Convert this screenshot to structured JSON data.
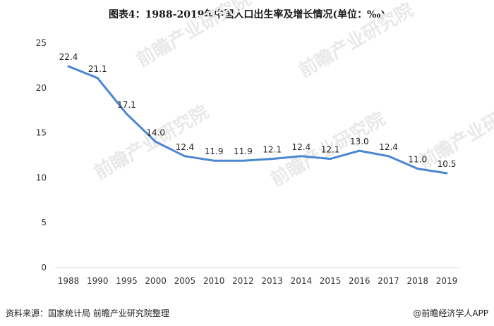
{
  "chart_data": {
    "type": "line",
    "title": "图表4：1988-2019年中国人口出生率及增长情况(单位：‰)",
    "categories": [
      "1988",
      "1990",
      "1995",
      "2000",
      "2005",
      "2010",
      "2012",
      "2013",
      "2014",
      "2015",
      "2016",
      "2017",
      "2018",
      "2019"
    ],
    "series": [
      {
        "values": [
          22.4,
          21.1,
          17.1,
          14.0,
          12.4,
          11.9,
          11.9,
          12.1,
          12.4,
          12.1,
          13.0,
          12.4,
          11.0,
          10.5
        ],
        "labels": [
          "22.4",
          "21.1",
          "17.1",
          "14.0",
          "12.4",
          "11.9",
          "11.9",
          "12.1",
          "12.4",
          "12.1",
          "13.0",
          "12.4",
          "11.0",
          "10.5"
        ]
      }
    ],
    "ylim": [
      0,
      25
    ],
    "yticks": [
      0,
      5,
      10,
      15,
      20,
      25
    ],
    "grid": false,
    "line_color": "#4a86d2",
    "watermark": "前瞻产业研究院"
  },
  "footer": {
    "source": "资料来源：国家统计局 前瞻产业研究院整理",
    "credit": "@前瞻经济学人APP"
  }
}
